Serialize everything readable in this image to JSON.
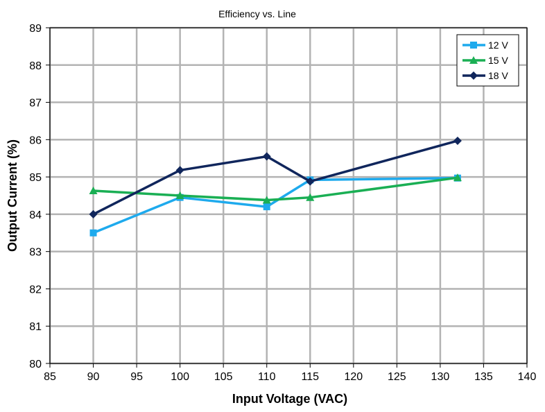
{
  "chart_data": {
    "type": "line",
    "title": "Efficiency vs. Line",
    "xlabel": "Input Voltage (VAC)",
    "ylabel": "Output Current (%)",
    "xlim": [
      85,
      140
    ],
    "ylim": [
      80,
      89
    ],
    "xticks": [
      85,
      90,
      95,
      100,
      105,
      110,
      115,
      120,
      125,
      130,
      135,
      140
    ],
    "yticks": [
      80,
      81,
      82,
      83,
      84,
      85,
      86,
      87,
      88,
      89
    ],
    "grid": true,
    "legend_position": "top-right",
    "series": [
      {
        "name": "12 V",
        "color": "#1eaaed",
        "marker": "square",
        "points": [
          [
            90,
            83.5
          ],
          [
            100,
            84.45
          ],
          [
            110,
            84.2
          ],
          [
            115,
            84.92
          ],
          [
            132,
            84.97
          ]
        ]
      },
      {
        "name": "15 V",
        "color": "#1aaf54",
        "marker": "triangle",
        "points": [
          [
            90,
            84.63
          ],
          [
            100,
            84.5
          ],
          [
            110,
            84.38
          ],
          [
            115,
            84.45
          ],
          [
            132,
            84.98
          ]
        ]
      },
      {
        "name": "18 V",
        "color": "#10265c",
        "marker": "diamond",
        "points": [
          [
            90,
            84.0
          ],
          [
            100,
            85.18
          ],
          [
            110,
            85.55
          ],
          [
            115,
            84.88
          ],
          [
            132,
            85.97
          ]
        ]
      }
    ]
  }
}
